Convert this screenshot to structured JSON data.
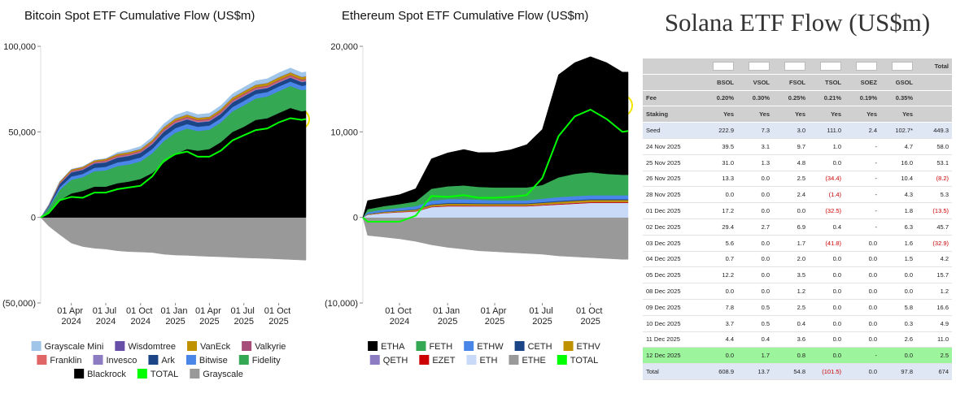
{
  "chart_data": [
    {
      "type": "stacked-area",
      "title": "Bitcoin Spot ETF Cumulative Flow (US$m)",
      "x": [
        "2024-01-11",
        "2024-02-01",
        "2024-03-01",
        "2024-04-01",
        "2024-05-01",
        "2024-06-01",
        "2024-07-01",
        "2024-08-01",
        "2024-09-01",
        "2024-10-01",
        "2024-11-01",
        "2024-12-01",
        "2025-01-01",
        "2025-02-01",
        "2025-03-01",
        "2025-04-01",
        "2025-05-01",
        "2025-06-01",
        "2025-07-01",
        "2025-08-01",
        "2025-09-01",
        "2025-10-01",
        "2025-11-01",
        "2025-12-01",
        "2025-12-12"
      ],
      "xlim": [
        "2024-01-11",
        "2025-12-12"
      ],
      "xticks": [
        {
          "value": "2024-04-01",
          "label": "01 Apr 2024"
        },
        {
          "value": "2024-07-01",
          "label": "01 Jul 2024"
        },
        {
          "value": "2024-10-01",
          "label": "01 Oct 2024"
        },
        {
          "value": "2025-01-01",
          "label": "01 Jan 2025"
        },
        {
          "value": "2025-04-01",
          "label": "01 Apr 2025"
        },
        {
          "value": "2025-07-01",
          "label": "01 Jul 2025"
        },
        {
          "value": "2025-10-01",
          "label": "01 Oct 2025"
        }
      ],
      "ylim": [
        -50000,
        100000
      ],
      "yticks": [
        {
          "value": 100000,
          "label": "100,000"
        },
        {
          "value": 50000,
          "label": "50,000"
        },
        0,
        {
          "value": -50000,
          "label": "(50,000)"
        }
      ],
      "series": [
        {
          "name": "Grayscale Mini",
          "color": "#9fc5e8",
          "values": [
            0,
            0,
            0,
            0,
            0,
            0,
            0,
            800,
            1200,
            1400,
            1600,
            1800,
            1900,
            1900,
            1900,
            1900,
            2000,
            2100,
            2200,
            2300,
            2400,
            2500,
            2500,
            2500,
            2500
          ]
        },
        {
          "name": "Wisdomtree",
          "color": "#674ea7",
          "values": [
            0,
            50,
            100,
            150,
            150,
            150,
            150,
            150,
            150,
            150,
            150,
            150,
            150,
            150,
            150,
            150,
            150,
            150,
            150,
            150,
            150,
            150,
            150,
            150,
            150
          ]
        },
        {
          "name": "VanEck",
          "color": "#bf9000",
          "values": [
            0,
            300,
            600,
            700,
            700,
            800,
            800,
            900,
            900,
            900,
            1000,
            1100,
            1200,
            1200,
            1100,
            1100,
            1200,
            1300,
            1400,
            1400,
            1400,
            1500,
            1500,
            1400,
            1400
          ]
        },
        {
          "name": "Valkyrie",
          "color": "#a64d79",
          "values": [
            0,
            100,
            300,
            400,
            400,
            400,
            500,
            500,
            500,
            500,
            550,
            600,
            600,
            600,
            600,
            600,
            600,
            600,
            600,
            600,
            600,
            600,
            600,
            600,
            600
          ]
        },
        {
          "name": "Franklin",
          "color": "#e06666",
          "values": [
            0,
            100,
            200,
            300,
            300,
            300,
            400,
            400,
            400,
            400,
            450,
            500,
            500,
            500,
            500,
            500,
            500,
            500,
            500,
            500,
            500,
            500,
            500,
            500,
            500
          ]
        },
        {
          "name": "Invesco",
          "color": "#8e7cc3",
          "values": [
            0,
            100,
            200,
            300,
            300,
            300,
            300,
            350,
            350,
            350,
            400,
            450,
            450,
            450,
            400,
            400,
            400,
            400,
            400,
            400,
            400,
            400,
            400,
            400,
            400
          ]
        },
        {
          "name": "Ark",
          "color": "#1c4587",
          "values": [
            0,
            600,
            2000,
            2400,
            2400,
            2500,
            2600,
            2700,
            2700,
            2700,
            2800,
            2900,
            2800,
            2700,
            2500,
            2500,
            2600,
            2700,
            2700,
            2400,
            2300,
            2300,
            2300,
            2200,
            2200
          ]
        },
        {
          "name": "Bitwise",
          "color": "#4a86e8",
          "values": [
            0,
            600,
            1500,
            1900,
            1900,
            2000,
            2100,
            2200,
            2300,
            2300,
            2500,
            2600,
            2700,
            2600,
            2500,
            2400,
            2400,
            2500,
            2600,
            2600,
            2600,
            2700,
            2600,
            2500,
            2500
          ]
        },
        {
          "name": "Fidelity",
          "color": "#34a853",
          "values": [
            0,
            2500,
            6000,
            8000,
            8000,
            9000,
            9500,
            10000,
            10000,
            10300,
            11500,
            12500,
            12500,
            12000,
            11500,
            11300,
            11500,
            12000,
            12500,
            12500,
            12700,
            12800,
            12800,
            12400,
            12300
          ]
        },
        {
          "name": "Blackrock",
          "color": "#000000",
          "values": [
            0,
            3000,
            10000,
            14000,
            15500,
            18000,
            18000,
            20000,
            21000,
            22500,
            26000,
            32000,
            37000,
            40000,
            39000,
            40000,
            44000,
            50000,
            53000,
            57000,
            58000,
            61000,
            64000,
            62000,
            62500
          ]
        },
        {
          "name": "TOTAL",
          "color": "#00ff00",
          "mark": "line",
          "values": [
            0,
            2500,
            10000,
            12000,
            11500,
            14500,
            14500,
            16500,
            17500,
            18500,
            24000,
            33000,
            37000,
            38500,
            35500,
            35500,
            39000,
            45000,
            48000,
            51000,
            52000,
            55500,
            58000,
            57000,
            57500
          ]
        },
        {
          "name": "Grayscale",
          "color": "#999999",
          "values": [
            0,
            -5000,
            -10000,
            -15000,
            -17000,
            -18000,
            -18500,
            -19500,
            -20000,
            -20200,
            -20500,
            -21500,
            -22000,
            -22200,
            -22500,
            -22800,
            -23000,
            -23300,
            -23600,
            -23800,
            -24000,
            -24300,
            -24600,
            -24900,
            -25000
          ]
        }
      ]
    },
    {
      "type": "stacked-area",
      "title": "Ethereum Spot ETF Cumulative Flow (US$m)",
      "x": [
        "2024-07-23",
        "2024-08-01",
        "2024-09-01",
        "2024-10-01",
        "2024-11-01",
        "2024-12-01",
        "2025-01-01",
        "2025-02-01",
        "2025-03-01",
        "2025-04-01",
        "2025-05-01",
        "2025-06-01",
        "2025-07-01",
        "2025-08-01",
        "2025-09-01",
        "2025-10-01",
        "2025-11-01",
        "2025-12-01",
        "2025-12-12"
      ],
      "xlim": [
        "2024-07-23",
        "2025-12-12"
      ],
      "xticks": [
        {
          "value": "2024-10-01",
          "label": "01 Oct 2024"
        },
        {
          "value": "2025-01-01",
          "label": "01 Jan 2025"
        },
        {
          "value": "2025-04-01",
          "label": "01 Apr 2025"
        },
        {
          "value": "2025-07-01",
          "label": "01 Jul 2025"
        },
        {
          "value": "2025-10-01",
          "label": "01 Oct 2025"
        }
      ],
      "ylim": [
        -10000,
        20000
      ],
      "yticks": [
        {
          "value": 20000,
          "label": "20,000"
        },
        {
          "value": 10000,
          "label": "10,000"
        },
        0,
        {
          "value": -10000,
          "label": "(10,000)"
        }
      ],
      "series": [
        {
          "name": "ETHA",
          "color": "#000000",
          "values": [
            0,
            1000,
            1000,
            1100,
            1500,
            3500,
            3900,
            4200,
            4000,
            4100,
            4400,
            5000,
            6500,
            12000,
            13000,
            13500,
            13000,
            12000,
            12000
          ]
        },
        {
          "name": "FETH",
          "color": "#34a853",
          "values": [
            0,
            350,
            400,
            450,
            550,
            1400,
            1500,
            1600,
            1500,
            1500,
            1500,
            1500,
            1600,
            2300,
            2600,
            2700,
            2500,
            2400,
            2400
          ]
        },
        {
          "name": "ETHW",
          "color": "#4a86e8",
          "values": [
            0,
            200,
            250,
            300,
            350,
            400,
            450,
            450,
            400,
            350,
            350,
            350,
            400,
            450,
            450,
            450,
            450,
            450,
            450
          ]
        },
        {
          "name": "CETH",
          "color": "#1c4587",
          "values": [
            0,
            30,
            40,
            50,
            60,
            80,
            90,
            90,
            90,
            80,
            80,
            80,
            90,
            100,
            100,
            100,
            100,
            100,
            100
          ]
        },
        {
          "name": "ETHV",
          "color": "#bf9000",
          "values": [
            0,
            50,
            80,
            100,
            120,
            180,
            200,
            200,
            190,
            180,
            180,
            180,
            200,
            220,
            230,
            230,
            230,
            230,
            230
          ]
        },
        {
          "name": "QETH",
          "color": "#8e7cc3",
          "values": [
            0,
            10,
            20,
            20,
            30,
            30,
            30,
            30,
            30,
            30,
            30,
            30,
            30,
            30,
            30,
            30,
            30,
            30,
            30
          ]
        },
        {
          "name": "EZET",
          "color": "#cc0000",
          "values": [
            0,
            20,
            30,
            40,
            50,
            60,
            70,
            70,
            60,
            60,
            60,
            60,
            70,
            80,
            80,
            80,
            80,
            80,
            80
          ]
        },
        {
          "name": "ETH",
          "color": "#c9daf8",
          "values": [
            0,
            300,
            500,
            600,
            700,
            1200,
            1300,
            1300,
            1300,
            1300,
            1300,
            1300,
            1400,
            1500,
            1600,
            1700,
            1700,
            1700,
            1700
          ]
        },
        {
          "name": "ETHE",
          "color": "#999999",
          "values": [
            0,
            -2100,
            -2300,
            -2500,
            -2800,
            -3200,
            -3500,
            -3700,
            -3900,
            -4000,
            -4100,
            -4200,
            -4300,
            -4500,
            -4600,
            -4700,
            -4800,
            -4900,
            -4900
          ]
        },
        {
          "name": "TOTAL",
          "color": "#00ff00",
          "mark": "line",
          "values": [
            0,
            -500,
            -500,
            -500,
            200,
            2500,
            2400,
            2600,
            2300,
            2300,
            2400,
            2600,
            4600,
            9500,
            11800,
            12600,
            11500,
            10000,
            10100
          ]
        }
      ]
    }
  ],
  "table": {
    "title": "Solana ETF Flow (US$m)",
    "total_header": "Total",
    "tickers": [
      "BSOL",
      "VSOL",
      "FSOL",
      "TSOL",
      "SOEZ",
      "GSOL"
    ],
    "rows": [
      [
        "Fee",
        "0.20%",
        "0.30%",
        "0.25%",
        "0.21%",
        "0.19%",
        "0.35%"
      ],
      [
        "Staking",
        "Yes",
        "Yes",
        "Yes",
        "Yes",
        "Yes",
        "Yes"
      ],
      [
        "Seed",
        "222.9",
        "7.3",
        "3.0",
        "111.0",
        "2.4",
        "102.7*",
        "449.3"
      ],
      [
        "24 Nov 2025",
        "39.5",
        "3.1",
        "9.7",
        "1.0",
        "-",
        "4.7",
        "58.0"
      ],
      [
        "25 Nov 2025",
        "31.0",
        "1.3",
        "4.8",
        "0.0",
        "-",
        "16.0",
        "53.1"
      ],
      [
        "26 Nov 2025",
        "13.3",
        "0.0",
        "2.5",
        "(34.4)",
        "-",
        "10.4",
        "(8.2)"
      ],
      [
        "28 Nov 2025",
        "0.0",
        "0.0",
        "2.4",
        "(1.4)",
        "-",
        "4.3",
        "5.3"
      ],
      [
        "01 Dec 2025",
        "17.2",
        "0.0",
        "0.0",
        "(32.5)",
        "-",
        "1.8",
        "(13.5)"
      ],
      [
        "02 Dec 2025",
        "29.4",
        "2.7",
        "6.9",
        "0.4",
        "-",
        "6.3",
        "45.7"
      ],
      [
        "03 Dec 2025",
        "5.6",
        "0.0",
        "1.7",
        "(41.8)",
        "0.0",
        "1.6",
        "(32.9)"
      ],
      [
        "04 Dec 2025",
        "0.7",
        "0.0",
        "2.0",
        "0.0",
        "0.0",
        "1.5",
        "4.2"
      ],
      [
        "05 Dec 2025",
        "12.2",
        "0.0",
        "3.5",
        "0.0",
        "0.0",
        "0.0",
        "15.7"
      ],
      [
        "08 Dec 2025",
        "0.0",
        "0.0",
        "1.2",
        "0.0",
        "0.0",
        "0.0",
        "1.2"
      ],
      [
        "09 Dec 2025",
        "7.8",
        "0.5",
        "2.5",
        "0.0",
        "0.0",
        "5.8",
        "16.6"
      ],
      [
        "10 Dec 2025",
        "3.7",
        "0.5",
        "0.4",
        "0.0",
        "0.0",
        "0.3",
        "4.9"
      ],
      [
        "11 Dec 2025",
        "4.4",
        "0.4",
        "3.6",
        "0.0",
        "0.0",
        "2.6",
        "11.0"
      ],
      [
        "12 Dec 2025",
        "0.0",
        "1.7",
        "0.8",
        "0.0",
        "-",
        "0.0",
        "2.5"
      ],
      [
        "Total",
        "608.9",
        "13.7",
        "54.8",
        "(101.5)",
        "0.0",
        "97.8",
        "674"
      ]
    ]
  }
}
